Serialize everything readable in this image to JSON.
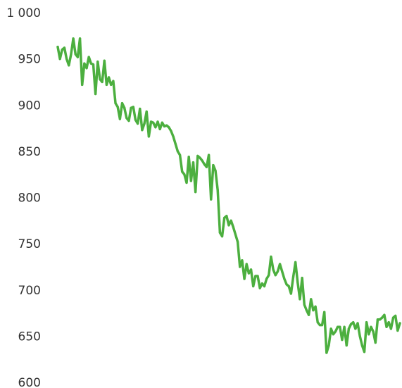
{
  "chart_data": {
    "type": "line",
    "title": "",
    "xlabel": "",
    "ylabel": "",
    "ylim": [
      600,
      1000
    ],
    "y_ticks": [
      {
        "value": 1000,
        "label": "1 000"
      },
      {
        "value": 950,
        "label": "950"
      },
      {
        "value": 900,
        "label": "900"
      },
      {
        "value": 850,
        "label": "850"
      },
      {
        "value": 800,
        "label": "800"
      },
      {
        "value": 750,
        "label": "750"
      },
      {
        "value": 700,
        "label": "700"
      },
      {
        "value": 650,
        "label": "650"
      },
      {
        "value": 600,
        "label": "600"
      }
    ],
    "x_axis_visible": false,
    "grid": false,
    "legend": "none",
    "series": [
      {
        "color": "#4caf3f",
        "values": [
          963,
          950,
          960,
          962,
          950,
          943,
          955,
          972,
          955,
          952,
          972,
          922,
          945,
          940,
          952,
          945,
          944,
          912,
          947,
          928,
          925,
          948,
          922,
          930,
          922,
          926,
          902,
          898,
          885,
          902,
          897,
          886,
          883,
          897,
          898,
          884,
          880,
          896,
          873,
          880,
          893,
          866,
          882,
          881,
          876,
          882,
          874,
          881,
          877,
          878,
          876,
          872,
          866,
          858,
          850,
          846,
          828,
          825,
          816,
          844,
          818,
          838,
          806,
          845,
          843,
          840,
          836,
          833,
          846,
          798,
          835,
          829,
          808,
          762,
          758,
          778,
          780,
          770,
          775,
          768,
          760,
          752,
          725,
          732,
          712,
          728,
          718,
          722,
          704,
          715,
          715,
          702,
          707,
          704,
          712,
          716,
          736,
          722,
          716,
          720,
          728,
          720,
          712,
          706,
          704,
          696,
          714,
          730,
          708,
          690,
          713,
          684,
          678,
          673,
          690,
          678,
          682,
          665,
          662,
          662,
          676,
          632,
          640,
          658,
          652,
          655,
          660,
          660,
          646,
          660,
          640,
          658,
          663,
          665,
          658,
          664,
          650,
          640,
          633,
          665,
          652,
          660,
          655,
          643,
          668,
          668,
          670,
          673,
          660,
          665,
          658,
          670,
          672,
          656,
          664
        ]
      }
    ]
  }
}
